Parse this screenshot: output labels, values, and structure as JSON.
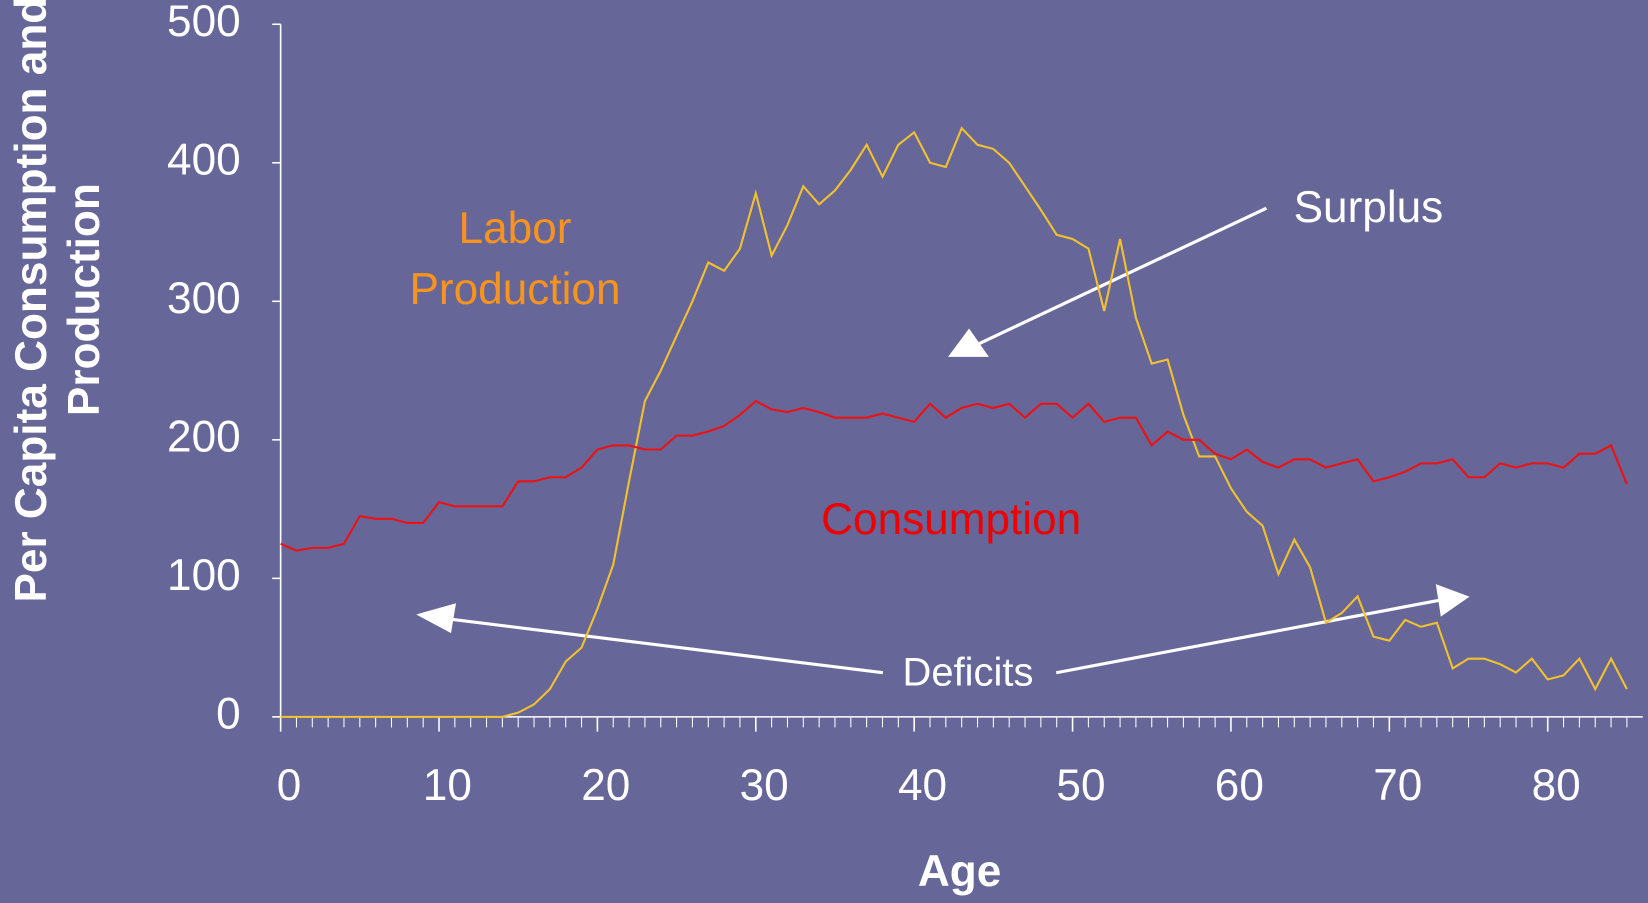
{
  "chart_data": {
    "type": "line",
    "x_label": "Age",
    "y_label": "Per Capita Consumption and Production",
    "x": [
      0,
      1,
      2,
      3,
      4,
      5,
      6,
      7,
      8,
      9,
      10,
      11,
      12,
      13,
      14,
      15,
      16,
      17,
      18,
      19,
      20,
      21,
      22,
      23,
      24,
      25,
      26,
      27,
      28,
      29,
      30,
      31,
      32,
      33,
      34,
      35,
      36,
      37,
      38,
      39,
      40,
      41,
      42,
      43,
      44,
      45,
      46,
      47,
      48,
      49,
      50,
      51,
      52,
      53,
      54,
      55,
      56,
      57,
      58,
      59,
      60,
      61,
      62,
      63,
      64,
      65,
      66,
      67,
      68,
      69,
      70,
      71,
      72,
      73,
      74,
      75,
      76,
      77,
      78,
      79,
      80,
      81,
      82,
      83,
      84,
      85
    ],
    "series": [
      {
        "name": "Labor Production",
        "color": "#f2c12e",
        "label_color": "#f7931e",
        "values": [
          0,
          0,
          0,
          0,
          0,
          0,
          0,
          0,
          0,
          0,
          0,
          0,
          0,
          0,
          0,
          3,
          9,
          20,
          40,
          50,
          78,
          110,
          170,
          228,
          250,
          275,
          300,
          328,
          322,
          338,
          378,
          333,
          355,
          383,
          370,
          380,
          395,
          413,
          390,
          413,
          422,
          400,
          397,
          425,
          413,
          410,
          400,
          383,
          366,
          348,
          345,
          338,
          293,
          345,
          288,
          255,
          258,
          218,
          188,
          188,
          165,
          148,
          138,
          103,
          128,
          108,
          68,
          75,
          87,
          58,
          55,
          70,
          65,
          68,
          35,
          42,
          42,
          38,
          32,
          42,
          27,
          30,
          42,
          20,
          42,
          20
        ]
      },
      {
        "name": "Consumption",
        "color": "#ee1111",
        "label_color": "#ee0000",
        "values": [
          125,
          120,
          122,
          122,
          125,
          145,
          143,
          143,
          140,
          140,
          155,
          152,
          152,
          152,
          152,
          170,
          170,
          173,
          173,
          180,
          193,
          196,
          196,
          193,
          193,
          203,
          203,
          206,
          210,
          218,
          228,
          222,
          220,
          223,
          220,
          216,
          216,
          216,
          219,
          216,
          213,
          226,
          216,
          223,
          226,
          223,
          226,
          216,
          226,
          226,
          216,
          226,
          213,
          216,
          216,
          196,
          206,
          200,
          200,
          190,
          186,
          193,
          184,
          180,
          186,
          186,
          180,
          183,
          186,
          170,
          173,
          177,
          183,
          183,
          186,
          173,
          173,
          183,
          180,
          183,
          183,
          180,
          190,
          190,
          196,
          168
        ]
      }
    ],
    "annotations": [
      "Surplus",
      "Deficits"
    ],
    "xlim": [
      0,
      86
    ],
    "xticks": [
      0,
      10,
      20,
      30,
      40,
      50,
      60,
      70,
      80
    ],
    "ylim": [
      0,
      500
    ],
    "yticks": [
      0,
      100,
      200,
      300,
      400,
      500
    ]
  }
}
